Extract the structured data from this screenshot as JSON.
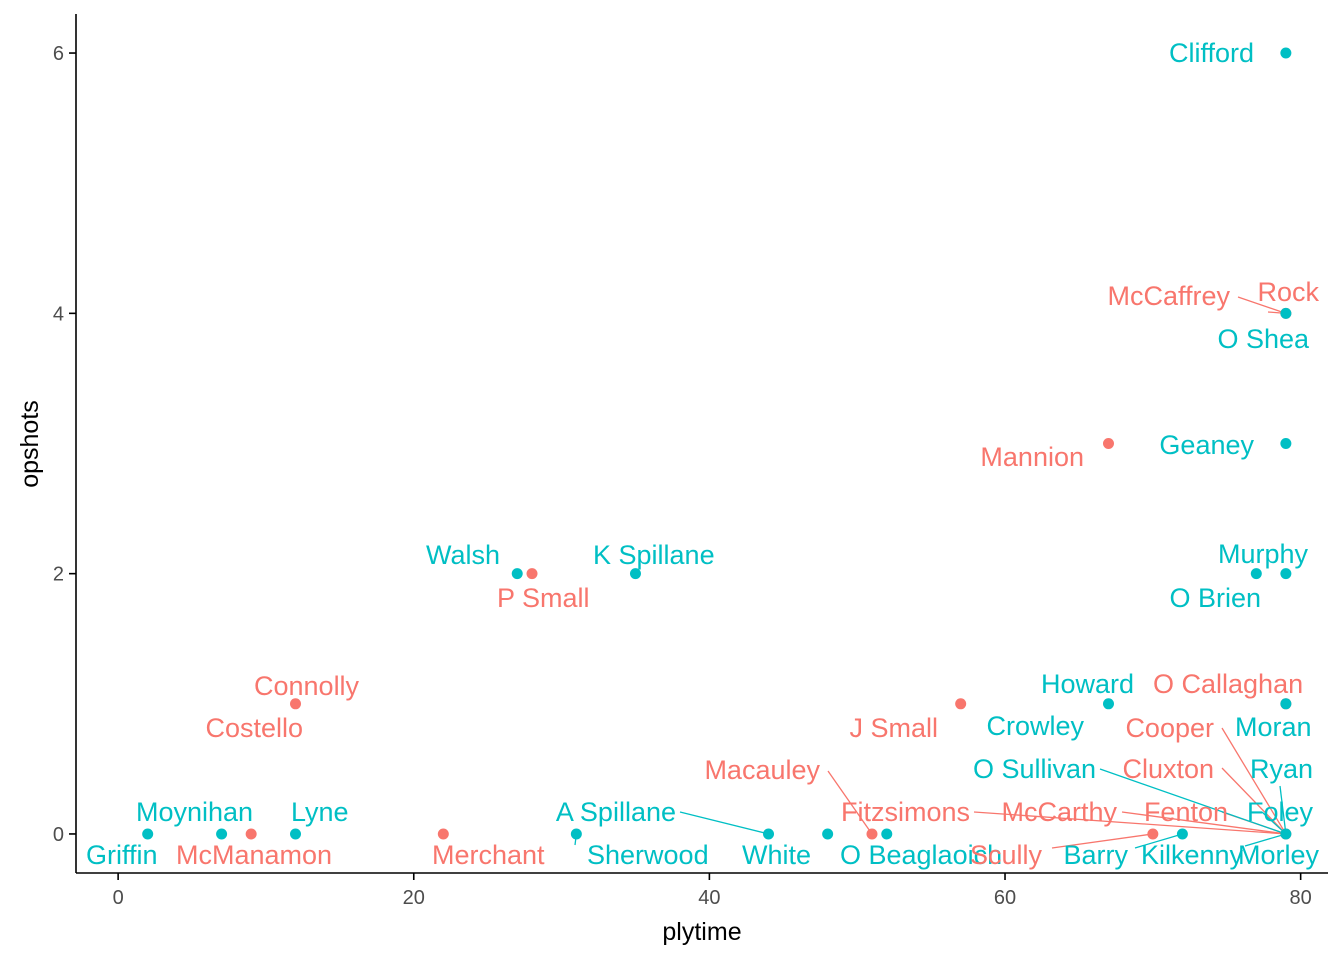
{
  "chart_data": {
    "type": "scatter",
    "title": "",
    "xlabel": "plytime",
    "ylabel": "opshots",
    "xlim": [
      -2.85,
      81.85
    ],
    "ylim": [
      -0.3,
      6.3
    ],
    "xticks": [
      0,
      20,
      40,
      60,
      80
    ],
    "yticks": [
      0,
      2,
      4,
      6
    ],
    "grid": false,
    "legend": "none",
    "colors": {
      "red": "#F8766D",
      "teal": "#00BFC4",
      "axis": "#000000",
      "tick_text": "#4d4d4d"
    },
    "points": [
      {
        "label": "Clifford",
        "x": 79,
        "y": 6,
        "group": "teal"
      },
      {
        "label": "Rock",
        "x": 79,
        "y": 4,
        "group": "red"
      },
      {
        "label": "McCaffrey",
        "x": 79,
        "y": 4,
        "group": "red"
      },
      {
        "label": "O Shea",
        "x": 79,
        "y": 4,
        "group": "teal"
      },
      {
        "label": "Geaney",
        "x": 79,
        "y": 3,
        "group": "teal"
      },
      {
        "label": "Mannion",
        "x": 67,
        "y": 3,
        "group": "red"
      },
      {
        "label": "Walsh",
        "x": 27,
        "y": 2,
        "group": "teal"
      },
      {
        "label": "P Small",
        "x": 28,
        "y": 2,
        "group": "red"
      },
      {
        "label": "K Spillane",
        "x": 35,
        "y": 2,
        "group": "teal"
      },
      {
        "label": "Murphy",
        "x": 79,
        "y": 2,
        "group": "teal"
      },
      {
        "label": "O Brien",
        "x": 77,
        "y": 2,
        "group": "teal"
      },
      {
        "label": "Connolly",
        "x": 12,
        "y": 1,
        "group": "red"
      },
      {
        "label": "Costello",
        "x": 12,
        "y": 1,
        "group": "red"
      },
      {
        "label": "J Small",
        "x": 57,
        "y": 1,
        "group": "red"
      },
      {
        "label": "Howard",
        "x": 67,
        "y": 1,
        "group": "teal"
      },
      {
        "label": "Crowley",
        "x": 67,
        "y": 1,
        "group": "teal"
      },
      {
        "label": "O Callaghan",
        "x": 79,
        "y": 1,
        "group": "red"
      },
      {
        "label": "Moran",
        "x": 79,
        "y": 1,
        "group": "teal"
      },
      {
        "label": "Cooper",
        "x": 79,
        "y": 0,
        "group": "red"
      },
      {
        "label": "Cluxton",
        "x": 79,
        "y": 0,
        "group": "red"
      },
      {
        "label": "Ryan",
        "x": 79,
        "y": 0,
        "group": "teal"
      },
      {
        "label": "Foley",
        "x": 79,
        "y": 0,
        "group": "teal"
      },
      {
        "label": "Fenton",
        "x": 79,
        "y": 0,
        "group": "red"
      },
      {
        "label": "McCarthy",
        "x": 79,
        "y": 0,
        "group": "red"
      },
      {
        "label": "Fitzsimons",
        "x": 79,
        "y": 0,
        "group": "red"
      },
      {
        "label": "O Sullivan",
        "x": 79,
        "y": 0,
        "group": "teal"
      },
      {
        "label": "Kilkenny",
        "x": 79,
        "y": 0,
        "group": "teal"
      },
      {
        "label": "Morley",
        "x": 79,
        "y": 0,
        "group": "teal"
      },
      {
        "label": "Macauley",
        "x": 51,
        "y": 0,
        "group": "red"
      },
      {
        "label": "Griffin",
        "x": 2,
        "y": 0,
        "group": "teal"
      },
      {
        "label": "Moynihan",
        "x": 7,
        "y": 0,
        "group": "teal"
      },
      {
        "label": "McManamon",
        "x": 9,
        "y": 0,
        "group": "red"
      },
      {
        "label": "Lyne",
        "x": 12,
        "y": 0,
        "group": "teal"
      },
      {
        "label": "Merchant",
        "x": 22,
        "y": 0,
        "group": "red"
      },
      {
        "label": "Sherwood",
        "x": 31,
        "y": 0,
        "group": "teal"
      },
      {
        "label": "A Spillane",
        "x": 44,
        "y": 0,
        "group": "teal"
      },
      {
        "label": "White",
        "x": 48,
        "y": 0,
        "group": "teal"
      },
      {
        "label": "O Beaglaoich",
        "x": 52,
        "y": 0,
        "group": "teal"
      },
      {
        "label": "Scully",
        "x": 70,
        "y": 0,
        "group": "red"
      },
      {
        "label": "Barry",
        "x": 72,
        "y": 0,
        "group": "teal"
      }
    ]
  }
}
